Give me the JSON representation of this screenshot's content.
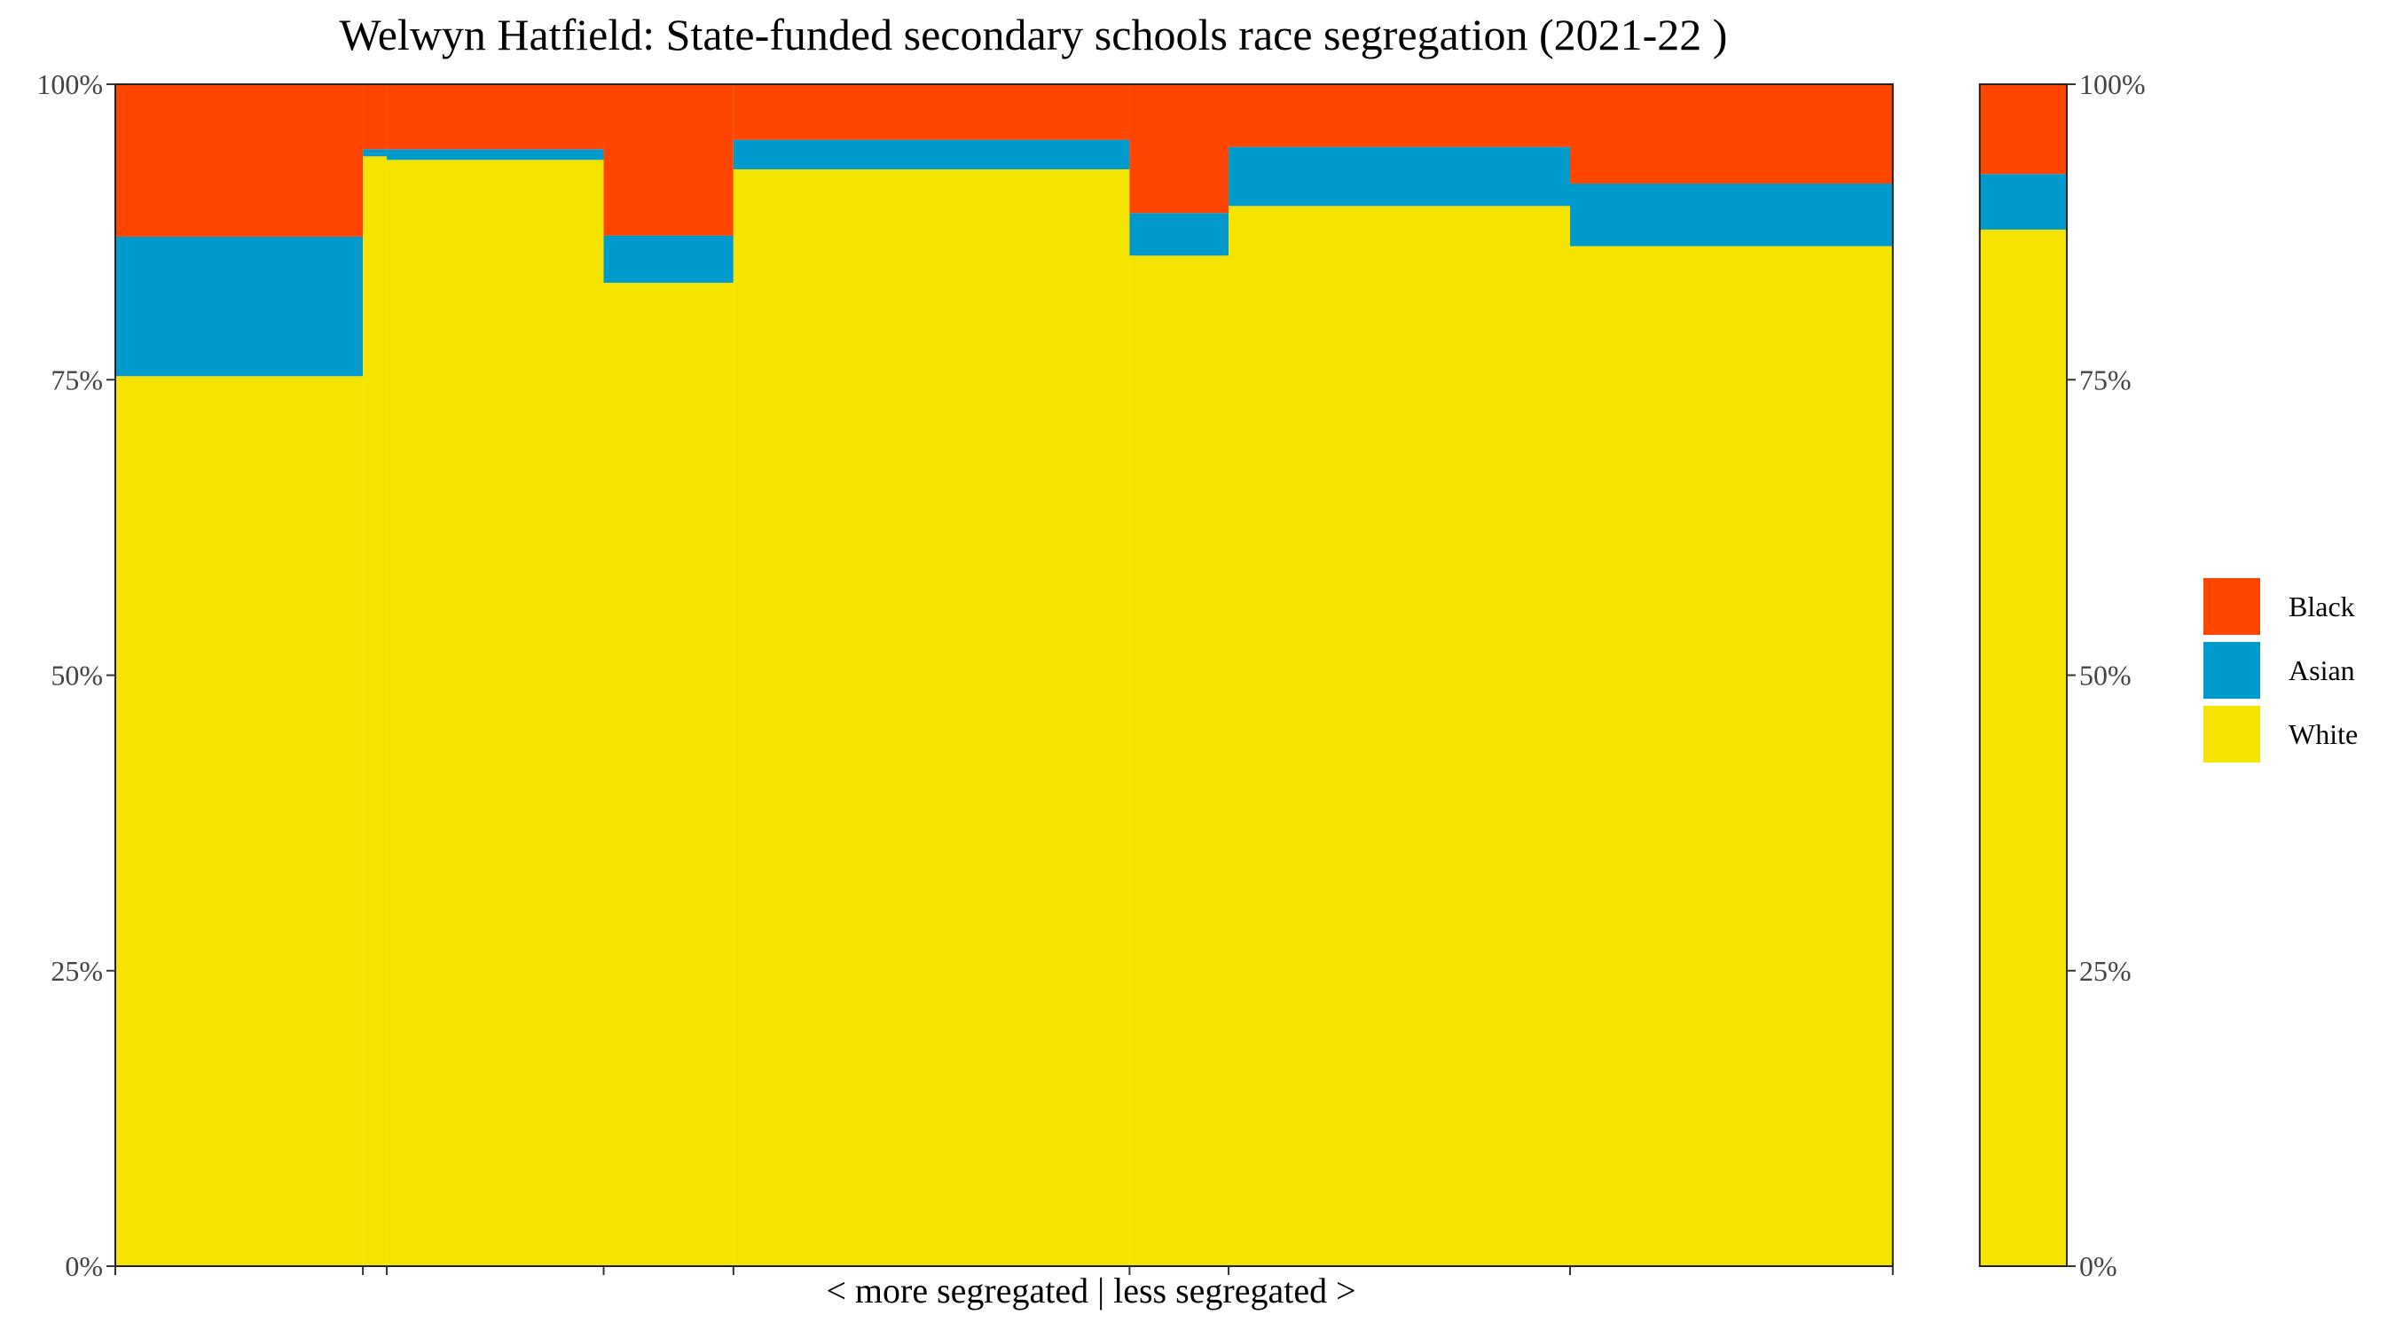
{
  "chart_data": {
    "type": "bar",
    "title": "Welwyn Hatfield: State-funded secondary schools race segregation (2021-22 )",
    "xlabel": "< more segregated | less segregated >",
    "ylabel": "",
    "ylim": [
      0,
      100
    ],
    "y_ticks": [
      "0%",
      "25%",
      "50%",
      "75%",
      "100%"
    ],
    "legend": {
      "position": "right",
      "entries": [
        "Black",
        "Asian",
        "White"
      ]
    },
    "colors": {
      "Black": "#FF4500",
      "Asian": "#009ACD",
      "White": "#F5E400"
    },
    "stack_order": [
      "White",
      "Asian",
      "Black"
    ],
    "groups": [
      {
        "label": "schools",
        "schools": [
          {
            "width": 1.45,
            "White": 75.3,
            "Asian": 11.8,
            "Black": 12.9
          },
          {
            "width": 0.14,
            "White": 93.9,
            "Asian": 0.6,
            "Black": 5.5
          },
          {
            "width": 1.27,
            "White": 93.6,
            "Asian": 0.9,
            "Black": 5.5
          },
          {
            "width": 0.76,
            "White": 83.2,
            "Asian": 4.0,
            "Black": 12.8
          },
          {
            "width": 2.32,
            "White": 92.8,
            "Asian": 2.5,
            "Black": 4.7
          },
          {
            "width": 0.58,
            "White": 85.5,
            "Asian": 3.6,
            "Black": 10.9
          },
          {
            "width": 2.0,
            "White": 89.7,
            "Asian": 5.0,
            "Black": 5.3
          },
          {
            "width": 1.89,
            "White": 86.3,
            "Asian": 5.3,
            "Black": 8.4
          }
        ]
      },
      {
        "label": "overall",
        "schools": [
          {
            "width": 0.51,
            "White": 87.7,
            "Asian": 4.7,
            "Black": 7.6
          }
        ]
      }
    ]
  }
}
